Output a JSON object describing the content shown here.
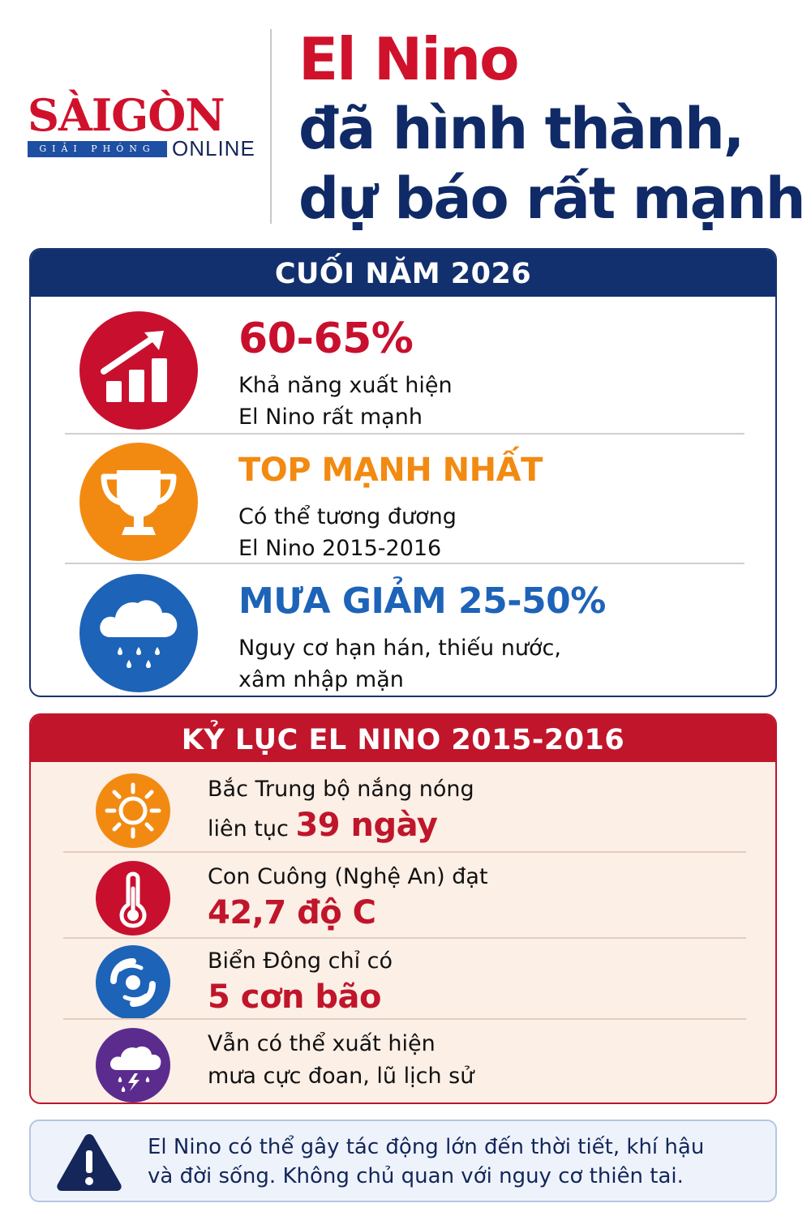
{
  "logo": {
    "name": "SÀIGÒN",
    "sub": "GIẢI PHÓNG",
    "online": "ONLINE"
  },
  "title": {
    "line1": "El Nino",
    "line2": "đã hình thành,",
    "line3": "dự báo rất mạnh"
  },
  "section1": {
    "heading": "CUỐI NĂM 2026",
    "items": [
      {
        "icon": "rising-bars-icon",
        "color": "#c8102e",
        "value": "60-65%",
        "desc1": "Khả năng xuất hiện",
        "desc2": "El Nino rất mạnh"
      },
      {
        "icon": "trophy-icon",
        "color": "#f28a12",
        "value": "TOP MẠNH NHẤT",
        "desc1": "Có thể tương đương",
        "desc2": "El Nino 2015-2016"
      },
      {
        "icon": "rain-cloud-icon",
        "color": "#1d63b8",
        "value": "MƯA GIẢM 25-50%",
        "desc1": "Nguy cơ hạn hán, thiếu nước,",
        "desc2": "xâm nhập mặn"
      }
    ]
  },
  "section2": {
    "heading": "KỶ LỤC EL NINO 2015-2016",
    "items": [
      {
        "icon": "sun-icon",
        "color": "#f28a12",
        "line1": "Bắc Trung bộ nắng nóng",
        "line2_prefix": "liên tục ",
        "highlight": "39 ngày"
      },
      {
        "icon": "thermometer-icon",
        "color": "#c8102e",
        "line1": "Con Cuông (Nghệ An) đạt",
        "highlight": "42,7 độ C"
      },
      {
        "icon": "cyclone-icon",
        "color": "#1d63b8",
        "line1": "Biển Đông chỉ có",
        "highlight": "5 cơn bão"
      },
      {
        "icon": "storm-cloud-icon",
        "color": "#5b2c8e",
        "line1": "Vẫn có thể xuất hiện",
        "line2": "mưa cực đoan, lũ lịch sử"
      }
    ]
  },
  "note": {
    "icon": "warning-icon",
    "line1": "El Nino có thể gây tác động lớn đến thời tiết, khí hậu",
    "line2": "và đời sống. Không chủ quan với nguy cơ thiên tai."
  }
}
